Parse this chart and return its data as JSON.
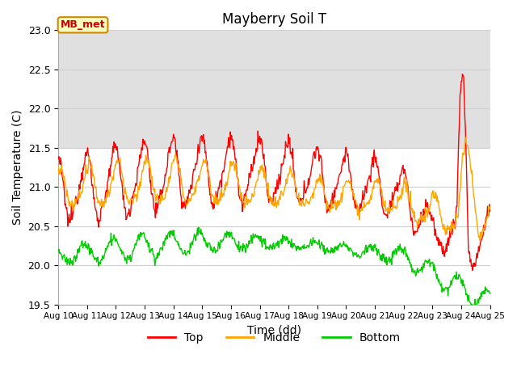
{
  "title": "Mayberry Soil T",
  "xlabel": "Time (dd)",
  "ylabel": "Soil Temperature (C)",
  "ylim": [
    19.5,
    23.0
  ],
  "xlim": [
    0,
    15
  ],
  "xtick_labels": [
    "Aug 10",
    "Aug 11",
    "Aug 12",
    "Aug 13",
    "Aug 14",
    "Aug 15",
    "Aug 16",
    "Aug 17",
    "Aug 18",
    "Aug 19",
    "Aug 20",
    "Aug 21",
    "Aug 22",
    "Aug 23",
    "Aug 24",
    "Aug 25"
  ],
  "shade_ymin": 21.5,
  "shade_ymax": 23.0,
  "shade_color": "#e0e0e0",
  "top_color": "#ff0000",
  "middle_color": "#ffa500",
  "bottom_color": "#00cc00",
  "legend_label_top": "Top",
  "legend_label_middle": "Middle",
  "legend_label_bottom": "Bottom",
  "annotation_text": "MB_met",
  "background_color": "#ffffff",
  "grid_color": "#d0d0d0",
  "yticks": [
    19.5,
    20.0,
    20.5,
    21.0,
    21.5,
    22.0,
    22.5,
    23.0
  ]
}
